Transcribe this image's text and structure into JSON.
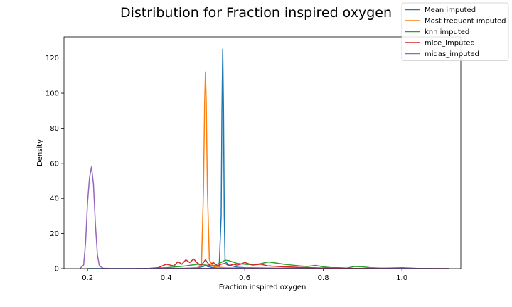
{
  "chart_data": {
    "type": "line",
    "title": "Distribution for Fraction inspired oxygen",
    "xlabel": "Fraction inspired oxygen",
    "ylabel": "Density",
    "xlim": [
      0.14,
      1.15
    ],
    "ylim": [
      0,
      132
    ],
    "xticks": [
      0.2,
      0.4,
      0.6,
      0.8,
      1.0
    ],
    "xtick_labels": [
      "0.2",
      "0.4",
      "0.6",
      "0.8",
      "1.0"
    ],
    "yticks": [
      0,
      20,
      40,
      60,
      80,
      100,
      120
    ],
    "ytick_labels": [
      "0",
      "20",
      "40",
      "60",
      "80",
      "100",
      "120"
    ],
    "grid": false,
    "legend_position": "top-right",
    "series": [
      {
        "name": "Mean imputed",
        "color": "#1f77b4",
        "x": [
          0.2,
          0.4,
          0.45,
          0.48,
          0.495,
          0.5,
          0.505,
          0.52,
          0.535,
          0.54,
          0.542,
          0.544,
          0.546,
          0.548,
          0.55,
          0.555,
          0.56,
          0.58,
          0.6,
          0.65,
          0.7,
          0.8,
          0.9,
          1.0,
          1.05,
          1.12
        ],
        "y": [
          0,
          0,
          0.2,
          0.5,
          1.2,
          2.0,
          1.2,
          0.5,
          1.0,
          30,
          90,
          125,
          90,
          30,
          4,
          3,
          2,
          0.8,
          0.5,
          0.3,
          0.2,
          0.1,
          0.1,
          0.3,
          0,
          0
        ]
      },
      {
        "name": "Most frequent imputed",
        "color": "#ff7f0e",
        "x": [
          0.35,
          0.45,
          0.48,
          0.49,
          0.495,
          0.498,
          0.5,
          0.502,
          0.505,
          0.51,
          0.52,
          0.55,
          0.6,
          0.7,
          1.12
        ],
        "y": [
          0,
          0.2,
          0.5,
          3,
          45,
          95,
          112,
          95,
          45,
          5,
          1,
          0.5,
          0.2,
          0,
          0
        ]
      },
      {
        "name": "knn imputed",
        "color": "#2ca02c",
        "x": [
          0.35,
          0.4,
          0.45,
          0.48,
          0.5,
          0.52,
          0.54,
          0.55,
          0.56,
          0.58,
          0.6,
          0.62,
          0.64,
          0.66,
          0.68,
          0.7,
          0.72,
          0.74,
          0.76,
          0.78,
          0.8,
          0.82,
          0.84,
          0.86,
          0.88,
          0.9,
          0.92,
          0.95,
          1.0,
          1.05
        ],
        "y": [
          0,
          0.5,
          1.5,
          2.5,
          2.0,
          1.5,
          3.5,
          4.8,
          4.5,
          3.0,
          2.5,
          2.2,
          2.8,
          3.8,
          3.2,
          2.5,
          2.0,
          1.5,
          1.2,
          1.8,
          1.0,
          0.5,
          0.5,
          0.3,
          1.2,
          1.0,
          0.5,
          0.2,
          0.5,
          0
        ]
      },
      {
        "name": "mice_imputed",
        "color": "#d62728",
        "x": [
          0.35,
          0.38,
          0.4,
          0.42,
          0.43,
          0.44,
          0.45,
          0.46,
          0.47,
          0.48,
          0.49,
          0.5,
          0.51,
          0.52,
          0.53,
          0.54,
          0.55,
          0.56,
          0.57,
          0.58,
          0.59,
          0.6,
          0.62,
          0.64,
          0.66,
          0.7,
          0.75,
          0.8,
          0.85,
          1.0
        ],
        "y": [
          0,
          0.5,
          2.5,
          1.5,
          4.0,
          2.5,
          5.0,
          3.5,
          5.5,
          3.0,
          2.0,
          5.0,
          2.0,
          3.5,
          1.5,
          2.5,
          3.0,
          1.5,
          2.5,
          2.0,
          2.5,
          3.5,
          2.0,
          2.5,
          1.5,
          1.0,
          0.6,
          0.3,
          0.1,
          0
        ]
      },
      {
        "name": "midas_imputed",
        "color": "#9467bd",
        "x": [
          0.18,
          0.19,
          0.195,
          0.2,
          0.205,
          0.21,
          0.215,
          0.22,
          0.225,
          0.23,
          0.24,
          0.26,
          0.3,
          0.35,
          0.4,
          0.5,
          0.6,
          0.7,
          0.8,
          0.9,
          1.0,
          1.12
        ],
        "y": [
          0,
          2,
          15,
          38,
          52,
          58,
          48,
          25,
          8,
          1.5,
          0.2,
          0,
          0,
          0.1,
          0.1,
          0.1,
          0.1,
          0.1,
          0,
          0,
          0.1,
          0
        ]
      }
    ]
  }
}
